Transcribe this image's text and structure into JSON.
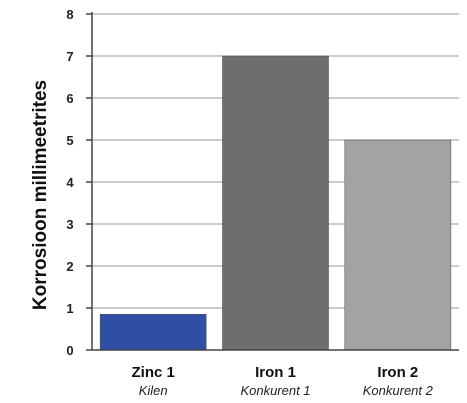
{
  "chart_data": {
    "type": "bar",
    "ylabel": "Korrosioon millimeetrites",
    "xlabel": "",
    "ylim": [
      0,
      8
    ],
    "yticks": [
      0,
      1,
      2,
      3,
      4,
      5,
      6,
      7,
      8
    ],
    "grid": true,
    "categories": [
      "Zinc 1",
      "Iron 1",
      "Iron 2"
    ],
    "subcategories": [
      "Kilen",
      "Konkurent 1",
      "Konkurent 2"
    ],
    "values": [
      0.85,
      7,
      5
    ],
    "colors": [
      "#2f4fa5",
      "#6e6e6e",
      "#a3a3a3"
    ]
  }
}
